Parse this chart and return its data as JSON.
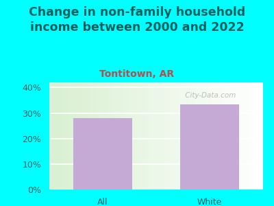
{
  "title": "Change in non-family household\nincome between 2000 and 2022",
  "subtitle": "Tontitown, AR",
  "categories": [
    "All",
    "White"
  ],
  "values": [
    28,
    33.5
  ],
  "bar_color": "#c5aad5",
  "title_fontsize": 12.5,
  "subtitle_fontsize": 10,
  "subtitle_color": "#b05050",
  "title_color": "#006060",
  "tick_label_color": "#006060",
  "ylim": [
    0,
    42
  ],
  "yticks": [
    0,
    10,
    20,
    30,
    40
  ],
  "ytick_labels": [
    "0%",
    "10%",
    "20%",
    "30%",
    "40%"
  ],
  "background_outer": "#00ffff",
  "watermark": " City-Data.com",
  "watermark_color": "#aaaaaa"
}
